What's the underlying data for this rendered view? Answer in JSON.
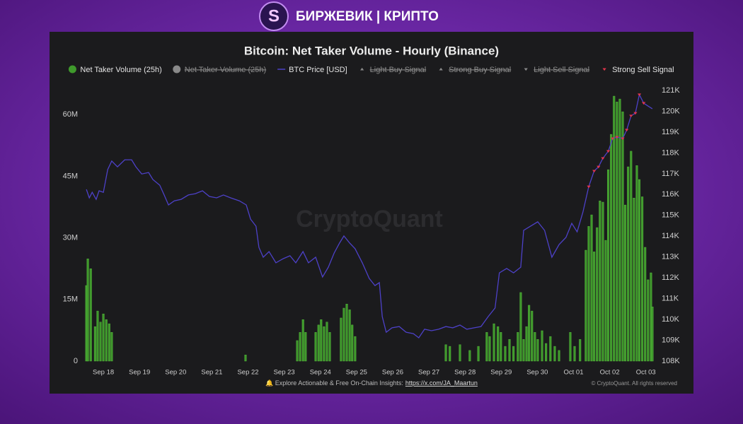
{
  "brand": "БИРЖЕВИК | КРИПТО",
  "chart_data": {
    "type": "bar",
    "title": "Bitcoin: Net Taker Volume - Hourly (Binance)",
    "watermark": "CryptoQuant",
    "footer_note": "Explore Actionable & Free On-Chain Insights:",
    "footer_link": "https://x.com/JA_Maartun",
    "copyright": "© CryptoQuant. All rights reserved",
    "grid": false,
    "xlim": [
      -0.55,
      15.24
    ],
    "xticks": [
      {
        "value": 0,
        "label": "Sep 18"
      },
      {
        "value": 1,
        "label": "Sep 19"
      },
      {
        "value": 2,
        "label": "Sep 20"
      },
      {
        "value": 3,
        "label": "Sep 21"
      },
      {
        "value": 4,
        "label": "Sep 22"
      },
      {
        "value": 5,
        "label": "Sep 23"
      },
      {
        "value": 6,
        "label": "Sep 24"
      },
      {
        "value": 7,
        "label": "Sep 25"
      },
      {
        "value": 8,
        "label": "Sep 26"
      },
      {
        "value": 9,
        "label": "Sep 27"
      },
      {
        "value": 10,
        "label": "Sep 28"
      },
      {
        "value": 11,
        "label": "Sep 29"
      },
      {
        "value": 12,
        "label": "Sep 30"
      },
      {
        "value": 13,
        "label": "Oct 01"
      },
      {
        "value": 14,
        "label": "Oct 02"
      },
      {
        "value": 15,
        "label": "Oct 03"
      }
    ],
    "ylim": [
      0,
      67600000
    ],
    "yticks": [
      0,
      {
        "value": 15000000,
        "label": "15M"
      },
      {
        "value": 30000000,
        "label": "30M"
      },
      {
        "value": 45000000,
        "label": "45M"
      },
      {
        "value": 60000000,
        "label": "60M"
      }
    ],
    "y2lim": [
      108000,
      121340
    ],
    "y2ticks": [
      {
        "value": 108000,
        "label": "108K"
      },
      {
        "value": 109000,
        "label": "109K"
      },
      {
        "value": 110000,
        "label": "110K"
      },
      {
        "value": 111000,
        "label": "111K"
      },
      {
        "value": 112000,
        "label": "112K"
      },
      {
        "value": 113000,
        "label": "113K"
      },
      {
        "value": 114000,
        "label": "114K"
      },
      {
        "value": 115000,
        "label": "115K"
      },
      {
        "value": 116000,
        "label": "116K"
      },
      {
        "value": 117000,
        "label": "117K"
      },
      {
        "value": 118000,
        "label": "118K"
      },
      {
        "value": 119000,
        "label": "119K"
      },
      {
        "value": 120000,
        "label": "120K"
      },
      {
        "value": 121000,
        "label": "121K"
      }
    ],
    "series": [
      {
        "name": "Net Taker Volume (25h)",
        "type": "bar",
        "marker": "circle",
        "color": "#3f9a2c",
        "x": [
          -0.47,
          -0.43,
          -0.35,
          -0.23,
          -0.16,
          -0.08,
          0,
          0.08,
          0.16,
          0.23,
          3.93,
          5.36,
          5.44,
          5.52,
          5.59,
          5.87,
          5.95,
          6.02,
          6.1,
          6.18,
          6.26,
          6.57,
          6.65,
          6.73,
          6.81,
          6.88,
          6.96,
          9.47,
          9.58,
          9.86,
          10.13,
          10.37,
          10.6,
          10.68,
          10.8,
          10.91,
          10.99,
          11.11,
          11.23,
          11.34,
          11.46,
          11.54,
          11.62,
          11.7,
          11.77,
          11.85,
          11.93,
          12.01,
          12.13,
          12.24,
          12.36,
          12.48,
          12.6,
          12.91,
          13.03,
          13.18,
          13.34,
          13.42,
          13.5,
          13.57,
          13.65,
          13.73,
          13.81,
          13.89,
          13.96,
          14.04,
          14.12,
          14.2,
          14.28,
          14.36,
          14.43,
          14.51,
          14.59,
          14.67,
          14.75,
          14.82,
          14.9,
          14.98,
          15.06,
          15.14,
          15.18
        ],
        "values": [
          18400000,
          24900000,
          22500000,
          8400000,
          12200000,
          9500000,
          11500000,
          10100000,
          9100000,
          7000000,
          1500000,
          5000000,
          7000000,
          10100000,
          7000000,
          7000000,
          8800000,
          10100000,
          8400000,
          9500000,
          7000000,
          10500000,
          12900000,
          13900000,
          12500000,
          8800000,
          6000000,
          4000000,
          3600000,
          4000000,
          2600000,
          3600000,
          7000000,
          6000000,
          9100000,
          8400000,
          7000000,
          3600000,
          5300000,
          3600000,
          7000000,
          16700000,
          5300000,
          8400000,
          13600000,
          12200000,
          7000000,
          5300000,
          7400000,
          4300000,
          6000000,
          3600000,
          2600000,
          7000000,
          3600000,
          5300000,
          27000000,
          32800000,
          35600000,
          26600000,
          32500000,
          39000000,
          38700000,
          29400000,
          46600000,
          55200000,
          64500000,
          63100000,
          63800000,
          60700000,
          38000000,
          47300000,
          51100000,
          39700000,
          47600000,
          44200000,
          40000000,
          27700000,
          19800000,
          21500000,
          13200000
        ]
      },
      {
        "name": "Net Taker Volume (25h)",
        "type": "bar",
        "marker": "circle",
        "color": "#9a9a9a",
        "hidden": true,
        "x": [],
        "values": []
      },
      {
        "name": "BTC Price [USD]",
        "type": "line",
        "marker": "line",
        "color": "#4d41c8",
        "axis": "y2",
        "x": [
          -0.47,
          -0.39,
          -0.31,
          -0.2,
          -0.12,
          0,
          0.12,
          0.23,
          0.39,
          0.59,
          0.78,
          0.9,
          1.06,
          1.25,
          1.37,
          1.56,
          1.68,
          1.8,
          1.96,
          2.15,
          2.35,
          2.54,
          2.74,
          2.93,
          3.13,
          3.32,
          3.52,
          3.76,
          3.95,
          4.07,
          4.22,
          4.3,
          4.42,
          4.58,
          4.77,
          4.97,
          5.16,
          5.32,
          5.52,
          5.67,
          5.87,
          6.06,
          6.22,
          6.38,
          6.53,
          6.65,
          6.81,
          6.96,
          7.16,
          7.35,
          7.51,
          7.63,
          7.71,
          7.82,
          7.98,
          8.18,
          8.37,
          8.57,
          8.72,
          8.88,
          9.07,
          9.27,
          9.47,
          9.66,
          9.86,
          10.05,
          10.25,
          10.44,
          10.64,
          10.83,
          10.95,
          11.15,
          11.34,
          11.54,
          11.62,
          11.81,
          12.01,
          12.2,
          12.4,
          12.6,
          12.79,
          12.95,
          13.1,
          13.26,
          13.42,
          13.57,
          13.69,
          13.81,
          13.96,
          14.08,
          14.2,
          14.36,
          14.47,
          14.59,
          14.71,
          14.82,
          14.94,
          15.06,
          15.18
        ],
        "values": [
          116250,
          115840,
          116110,
          115770,
          116180,
          116110,
          117200,
          117610,
          117330,
          117670,
          117670,
          117330,
          116990,
          117060,
          116720,
          116450,
          115980,
          115500,
          115700,
          115770,
          115980,
          116040,
          116180,
          115910,
          115840,
          115980,
          115840,
          115700,
          115500,
          114820,
          114480,
          113460,
          112990,
          113260,
          112720,
          112920,
          113060,
          112720,
          113260,
          112720,
          112990,
          112040,
          112510,
          113190,
          113670,
          114010,
          113670,
          113400,
          112720,
          111970,
          111630,
          111770,
          110140,
          109390,
          109600,
          109660,
          109390,
          109320,
          109120,
          109530,
          109460,
          109530,
          109660,
          109600,
          109730,
          109530,
          109600,
          109660,
          110140,
          110550,
          112240,
          112450,
          112240,
          112510,
          114280,
          114480,
          114690,
          114280,
          112990,
          113600,
          113940,
          114620,
          114210,
          115160,
          116380,
          117130,
          117330,
          117740,
          118080,
          118690,
          118760,
          118690,
          119100,
          119780,
          119910,
          120800,
          120390,
          120250,
          120120
        ]
      },
      {
        "name": "Light Buy Signal",
        "type": "scatter",
        "marker": "triangle-up",
        "color": "#8a8a8a",
        "hidden": true,
        "x": [],
        "values": []
      },
      {
        "name": "Strong Buy Signal",
        "type": "scatter",
        "marker": "triangle-up",
        "color": "#8a8a8a",
        "hidden": true,
        "x": [],
        "values": []
      },
      {
        "name": "Light Sell Signal",
        "type": "scatter",
        "marker": "triangle-down",
        "color": "#8a8a8a",
        "hidden": true,
        "x": [],
        "values": []
      },
      {
        "name": "Strong Sell Signal",
        "type": "scatter",
        "marker": "triangle-down",
        "color": "#e2344c",
        "axis": "y2",
        "x": [
          13.42,
          13.57,
          13.69,
          13.81,
          13.96,
          14.08,
          14.2,
          14.36,
          14.47,
          14.59,
          14.71,
          14.82,
          14.94
        ],
        "values": [
          116380,
          117130,
          117330,
          117740,
          118080,
          118690,
          118760,
          118690,
          119100,
          119780,
          119910,
          120800,
          120390
        ]
      }
    ]
  }
}
